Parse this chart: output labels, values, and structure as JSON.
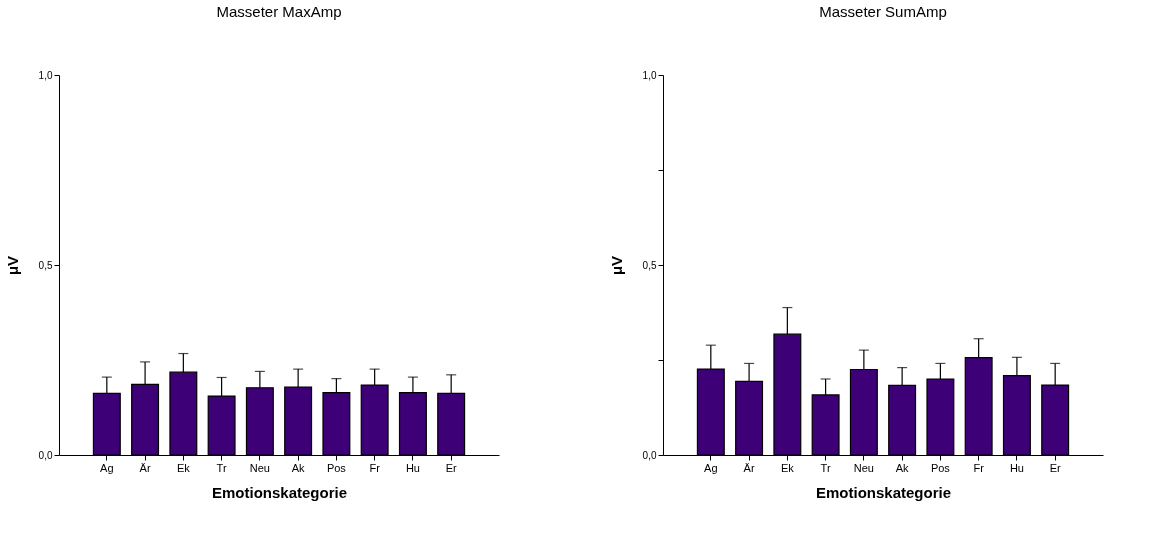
{
  "chart_data": [
    {
      "type": "bar",
      "title": "Masseter MaxAmp",
      "xlabel": "Emotionskategorie",
      "ylabel": "μV",
      "categories": [
        "Ag",
        "Är",
        "Ek",
        "Tr",
        "Neu",
        "Ak",
        "Pos",
        "Fr",
        "Hu",
        "Er"
      ],
      "series": [
        {
          "color": "#3d0077",
          "values": [
            0.162,
            0.186,
            0.218,
            0.155,
            0.177,
            0.179,
            0.164,
            0.184,
            0.164,
            0.162
          ],
          "errors": [
            0.043,
            0.059,
            0.049,
            0.049,
            0.043,
            0.047,
            0.037,
            0.042,
            0.041,
            0.049
          ]
        }
      ],
      "ylim": [
        0,
        1
      ],
      "yticks": [
        {
          "value": 0,
          "label": "0,0"
        },
        {
          "value": 0.5,
          "label": "0,5"
        },
        {
          "value": 1,
          "label": "1,0"
        }
      ],
      "grid": false
    },
    {
      "type": "bar",
      "title": "Masseter SumAmp",
      "xlabel": "Emotionskategorie",
      "ylabel": "μV",
      "categories": [
        "Ag",
        "Är",
        "Ek",
        "Tr",
        "Neu",
        "Ak",
        "Pos",
        "Fr",
        "Hu",
        "Er"
      ],
      "series": [
        {
          "color": "#3d0077",
          "values": [
            0.226,
            0.194,
            0.318,
            0.158,
            0.225,
            0.183,
            0.2,
            0.256,
            0.209,
            0.184
          ],
          "errors": [
            0.063,
            0.047,
            0.07,
            0.042,
            0.051,
            0.047,
            0.041,
            0.05,
            0.048,
            0.057
          ]
        }
      ],
      "ylim": [
        0,
        1
      ],
      "yticks": [
        {
          "value": 0,
          "label": "0,0"
        },
        {
          "value": 0.25,
          "label": null
        },
        {
          "value": 0.5,
          "label": "0,5"
        },
        {
          "value": 0.75,
          "label": null
        },
        {
          "value": 1,
          "label": "1,0"
        }
      ],
      "grid": false
    }
  ]
}
